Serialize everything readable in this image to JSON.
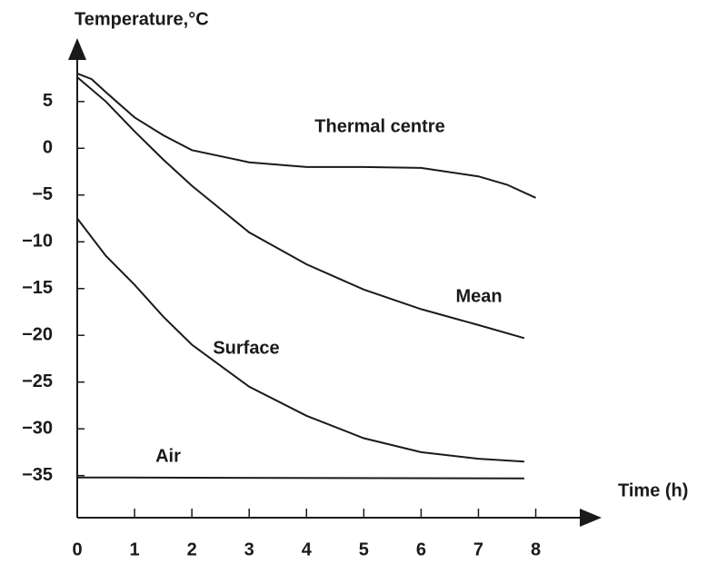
{
  "chart_data": {
    "type": "line",
    "y_label": "Temperature,°C",
    "x_label": "Time (h)",
    "xlim": [
      0,
      8.8
    ],
    "ylim": [
      -39.5,
      11
    ],
    "xticks": [
      0,
      1,
      2,
      3,
      4,
      5,
      6,
      7,
      8
    ],
    "yticks": [
      5,
      0,
      {
        "value": -5,
        "label": "−5"
      },
      {
        "value": -10,
        "label": "−10"
      },
      {
        "value": -15,
        "label": "−15"
      },
      {
        "value": -20,
        "label": "−20"
      },
      {
        "value": -25,
        "label": "−25"
      },
      {
        "value": -30,
        "label": "−30"
      },
      {
        "value": -35,
        "label": "−35"
      }
    ],
    "series": [
      {
        "name": "Thermal centre",
        "color": "#1a1a1a",
        "x": [
          0,
          0.25,
          0.5,
          1,
          1.5,
          2,
          3,
          4,
          5,
          6,
          7,
          7.5,
          8
        ],
        "values": [
          8,
          7.4,
          6,
          3.3,
          1.4,
          -0.2,
          -1.5,
          -2,
          -2,
          -2.1,
          -3,
          -3.9,
          -5.3
        ]
      },
      {
        "name": "Mean",
        "color": "#1a1a1a",
        "x": [
          0,
          0.5,
          1,
          1.5,
          2,
          3,
          4,
          5,
          6,
          7,
          7.8
        ],
        "values": [
          7.6,
          5,
          1.8,
          -1.2,
          -4,
          -9,
          -12.4,
          -15.1,
          -17.2,
          -18.9,
          -20.3
        ]
      },
      {
        "name": "Surface",
        "color": "#1a1a1a",
        "x": [
          0,
          0.5,
          1,
          1.5,
          2,
          3,
          4,
          5,
          6,
          7,
          7.8
        ],
        "values": [
          -7.5,
          -11.5,
          -14.6,
          -18,
          -21,
          -25.5,
          -28.6,
          -31,
          -32.5,
          -33.2,
          -33.5
        ]
      },
      {
        "name": "Air",
        "color": "#1a1a1a",
        "x": [
          0,
          7.8
        ],
        "values": [
          -35.2,
          -35.3
        ]
      }
    ]
  }
}
